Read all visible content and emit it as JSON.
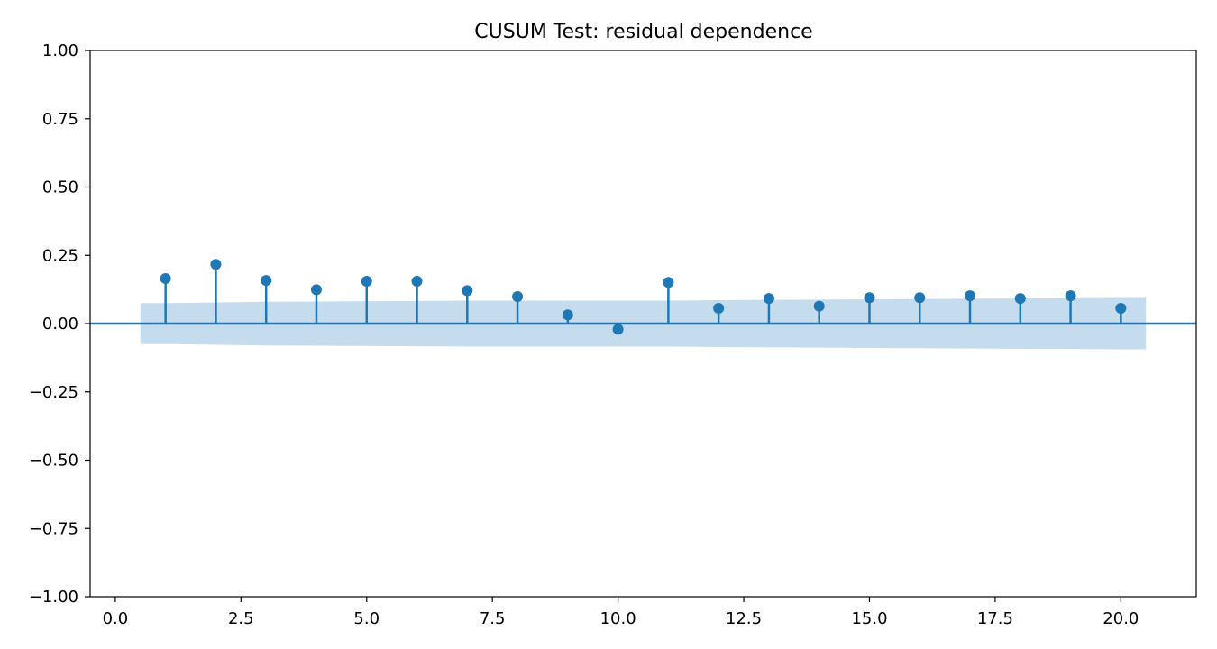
{
  "chart_data": {
    "type": "stem",
    "title": "CUSUM Test: residual dependence",
    "xlabel": "",
    "ylabel": "",
    "xlim": [
      -0.5,
      21.5
    ],
    "ylim": [
      -1.0,
      1.0
    ],
    "x_ticks": [
      0.0,
      2.5,
      5.0,
      7.5,
      10.0,
      12.5,
      15.0,
      17.5,
      20.0
    ],
    "x_tick_labels": [
      "0.0",
      "2.5",
      "5.0",
      "7.5",
      "10.0",
      "12.5",
      "15.0",
      "17.5",
      "20.0"
    ],
    "y_ticks": [
      1.0,
      0.75,
      0.5,
      0.25,
      0.0,
      -0.25,
      -0.5,
      -0.75,
      -1.0
    ],
    "y_tick_labels": [
      "1.00",
      "0.75",
      "0.50",
      "0.25",
      "0.00",
      "−0.25",
      "−0.50",
      "−0.75",
      "−1.00"
    ],
    "grid": false,
    "baseline": 0.0,
    "colors": {
      "stem": "#1f77b4",
      "band": "#c5dcee",
      "axis": "#000000"
    },
    "series": [
      {
        "x": [
          1,
          2,
          3,
          4,
          5,
          6,
          7,
          8,
          9,
          10,
          11,
          12,
          13,
          14,
          15,
          16,
          17,
          18,
          19,
          20
        ],
        "values": [
          0.165,
          0.217,
          0.158,
          0.124,
          0.155,
          0.155,
          0.121,
          0.099,
          0.032,
          -0.021,
          0.151,
          0.056,
          0.092,
          0.064,
          0.095,
          0.095,
          0.102,
          0.092,
          0.102,
          0.056
        ]
      }
    ],
    "confidence_band": {
      "x": [
        0.5,
        1,
        2,
        3,
        4,
        5,
        6,
        7,
        8,
        9,
        10,
        11,
        12,
        13,
        14,
        15,
        16,
        17,
        18,
        19,
        20,
        20.5
      ],
      "upper": [
        0.075,
        0.075,
        0.077,
        0.08,
        0.081,
        0.082,
        0.083,
        0.084,
        0.084,
        0.084,
        0.084,
        0.084,
        0.086,
        0.087,
        0.088,
        0.089,
        0.09,
        0.091,
        0.092,
        0.093,
        0.094,
        0.094
      ],
      "lower": [
        -0.075,
        -0.075,
        -0.077,
        -0.08,
        -0.081,
        -0.082,
        -0.083,
        -0.084,
        -0.084,
        -0.084,
        -0.084,
        -0.084,
        -0.086,
        -0.087,
        -0.088,
        -0.089,
        -0.09,
        -0.091,
        -0.092,
        -0.093,
        -0.094,
        -0.094
      ]
    }
  }
}
